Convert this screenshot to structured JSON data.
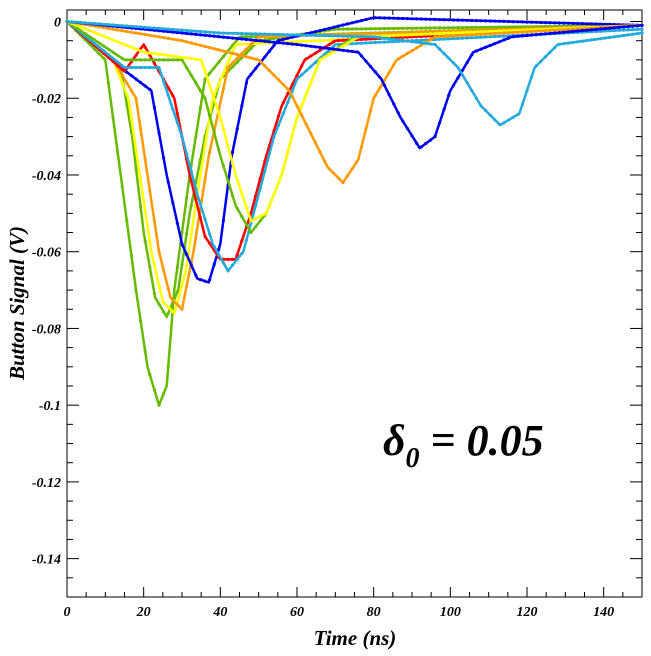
{
  "chart_data": {
    "type": "line",
    "title": "",
    "xlabel": "Time (ns)",
    "ylabel": "Button Signal (V)",
    "xlim": [
      0,
      150
    ],
    "ylim": [
      -0.15,
      0.003
    ],
    "xticks": [
      0,
      20,
      40,
      60,
      80,
      100,
      120,
      140
    ],
    "xtick_labels": [
      "0",
      "20",
      "40",
      "60",
      "80",
      "100",
      "120",
      "140"
    ],
    "yticks": [
      0,
      -0.02,
      -0.04,
      -0.06,
      -0.08,
      -0.1,
      -0.12,
      -0.14
    ],
    "ytick_labels": [
      "0",
      "-0.02",
      "-0.04",
      "-0.06",
      "-0.08",
      "-0.1",
      "-0.12",
      "-0.14"
    ],
    "grid": false,
    "legend": "none",
    "annotation": {
      "symbol": "δ",
      "subscript": "0",
      "text": " = 0.05"
    },
    "series": [
      {
        "color": "#66bb00",
        "points": [
          [
            0,
            0
          ],
          [
            10,
            -0.008
          ],
          [
            14,
            -0.012
          ],
          [
            17,
            -0.03
          ],
          [
            20,
            -0.055
          ],
          [
            23,
            -0.072
          ],
          [
            26,
            -0.077
          ],
          [
            29,
            -0.07
          ],
          [
            32,
            -0.05
          ],
          [
            36,
            -0.03
          ],
          [
            40,
            -0.015
          ],
          [
            50,
            -0.005
          ],
          [
            70,
            -0.002
          ],
          [
            150,
            -0.001
          ]
        ]
      },
      {
        "color": "#66bb00",
        "points": [
          [
            0,
            0
          ],
          [
            10,
            -0.01
          ],
          [
            14,
            -0.04
          ],
          [
            18,
            -0.07
          ],
          [
            21,
            -0.09
          ],
          [
            24,
            -0.1
          ],
          [
            26,
            -0.095
          ],
          [
            28,
            -0.07
          ],
          [
            32,
            -0.04
          ],
          [
            36,
            -0.015
          ],
          [
            45,
            -0.004
          ],
          [
            150,
            -0.001
          ]
        ]
      },
      {
        "color": "#ffff00",
        "points": [
          [
            0,
            0
          ],
          [
            12,
            -0.01
          ],
          [
            16,
            -0.02
          ],
          [
            19,
            -0.04
          ],
          [
            22,
            -0.06
          ],
          [
            25,
            -0.073
          ],
          [
            28,
            -0.076
          ],
          [
            31,
            -0.065
          ],
          [
            34,
            -0.045
          ],
          [
            38,
            -0.02
          ],
          [
            44,
            -0.006
          ],
          [
            150,
            -0.001
          ]
        ]
      },
      {
        "color": "#ff9900",
        "points": [
          [
            0,
            0
          ],
          [
            12,
            -0.01
          ],
          [
            18,
            -0.02
          ],
          [
            21,
            -0.04
          ],
          [
            24,
            -0.06
          ],
          [
            27,
            -0.072
          ],
          [
            30,
            -0.075
          ],
          [
            33,
            -0.06
          ],
          [
            37,
            -0.035
          ],
          [
            42,
            -0.012
          ],
          [
            50,
            -0.004
          ],
          [
            150,
            -0.001
          ]
        ]
      },
      {
        "color": "#0000ee",
        "points": [
          [
            0,
            0
          ],
          [
            14,
            -0.012
          ],
          [
            22,
            -0.018
          ],
          [
            26,
            -0.04
          ],
          [
            30,
            -0.058
          ],
          [
            34,
            -0.067
          ],
          [
            37,
            -0.068
          ],
          [
            40,
            -0.058
          ],
          [
            43,
            -0.035
          ],
          [
            47,
            -0.015
          ],
          [
            55,
            -0.005
          ],
          [
            80,
            0.001
          ],
          [
            150,
            -0.001
          ]
        ]
      },
      {
        "color": "#ff0000",
        "points": [
          [
            0,
            0
          ],
          [
            15,
            -0.013
          ],
          [
            20,
            -0.006
          ],
          [
            28,
            -0.02
          ],
          [
            32,
            -0.04
          ],
          [
            36,
            -0.056
          ],
          [
            40,
            -0.062
          ],
          [
            44,
            -0.062
          ],
          [
            48,
            -0.05
          ],
          [
            52,
            -0.035
          ],
          [
            56,
            -0.022
          ],
          [
            62,
            -0.01
          ],
          [
            70,
            -0.005
          ],
          [
            150,
            -0.001
          ]
        ]
      },
      {
        "color": "#22aadd",
        "points": [
          [
            0,
            0
          ],
          [
            15,
            -0.012
          ],
          [
            24,
            -0.012
          ],
          [
            30,
            -0.03
          ],
          [
            34,
            -0.045
          ],
          [
            38,
            -0.058
          ],
          [
            42,
            -0.065
          ],
          [
            46,
            -0.06
          ],
          [
            50,
            -0.045
          ],
          [
            54,
            -0.03
          ],
          [
            60,
            -0.015
          ],
          [
            70,
            -0.006
          ],
          [
            150,
            -0.002
          ]
        ]
      },
      {
        "color": "#66bb00",
        "points": [
          [
            0,
            0
          ],
          [
            15,
            -0.01
          ],
          [
            30,
            -0.01
          ],
          [
            36,
            -0.02
          ],
          [
            40,
            -0.035
          ],
          [
            44,
            -0.048
          ],
          [
            48,
            -0.055
          ],
          [
            52,
            -0.05
          ],
          [
            56,
            -0.04
          ],
          [
            60,
            -0.025
          ],
          [
            66,
            -0.01
          ],
          [
            75,
            -0.004
          ],
          [
            150,
            -0.001
          ]
        ]
      },
      {
        "color": "#ffff00",
        "points": [
          [
            0,
            0
          ],
          [
            20,
            -0.008
          ],
          [
            35,
            -0.01
          ],
          [
            40,
            -0.025
          ],
          [
            44,
            -0.04
          ],
          [
            48,
            -0.052
          ],
          [
            52,
            -0.05
          ],
          [
            56,
            -0.04
          ],
          [
            60,
            -0.025
          ],
          [
            66,
            -0.01
          ],
          [
            76,
            -0.004
          ],
          [
            150,
            -0.001
          ]
        ]
      },
      {
        "color": "#ff9900",
        "points": [
          [
            0,
            0
          ],
          [
            30,
            -0.005
          ],
          [
            50,
            -0.01
          ],
          [
            58,
            -0.018
          ],
          [
            64,
            -0.03
          ],
          [
            68,
            -0.038
          ],
          [
            72,
            -0.042
          ],
          [
            76,
            -0.036
          ],
          [
            80,
            -0.02
          ],
          [
            86,
            -0.01
          ],
          [
            96,
            -0.004
          ],
          [
            150,
            -0.001
          ]
        ]
      },
      {
        "color": "#0000ee",
        "points": [
          [
            0,
            0
          ],
          [
            30,
            -0.003
          ],
          [
            60,
            -0.006
          ],
          [
            76,
            -0.008
          ],
          [
            82,
            -0.015
          ],
          [
            87,
            -0.025
          ],
          [
            92,
            -0.033
          ],
          [
            96,
            -0.03
          ],
          [
            100,
            -0.018
          ],
          [
            106,
            -0.008
          ],
          [
            116,
            -0.004
          ],
          [
            150,
            -0.001
          ]
        ]
      },
      {
        "color": "#22aadd",
        "points": [
          [
            0,
            0
          ],
          [
            40,
            -0.003
          ],
          [
            80,
            -0.004
          ],
          [
            96,
            -0.006
          ],
          [
            102,
            -0.012
          ],
          [
            108,
            -0.022
          ],
          [
            113,
            -0.027
          ],
          [
            118,
            -0.024
          ],
          [
            122,
            -0.012
          ],
          [
            128,
            -0.006
          ],
          [
            150,
            -0.003
          ]
        ]
      }
    ]
  }
}
